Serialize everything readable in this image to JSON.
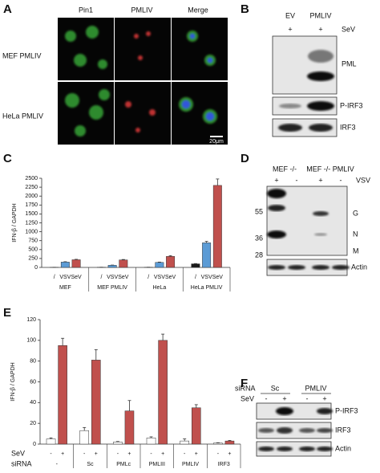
{
  "panels": {
    "A": {
      "label": "A",
      "columns": [
        "Pin1",
        "PMLIV",
        "Merge"
      ],
      "rows": [
        "MEF PMLIV",
        "HeLa PMLIV"
      ],
      "scale_bar": "20μm"
    },
    "B": {
      "label": "B",
      "lanes": [
        "EV",
        "PMLIV"
      ],
      "lane_marks": [
        "+",
        "+"
      ],
      "treatment": "SeV",
      "bands": [
        "PML",
        "P-IRF3",
        "IRF3"
      ]
    },
    "C": {
      "label": "C"
    },
    "D": {
      "label": "D",
      "lanes": [
        "MEF -/-",
        "MEF -/- PMLIV"
      ],
      "lane_marks": [
        "+",
        "-",
        "+",
        "-"
      ],
      "treatment": "VSV",
      "markers": [
        55,
        36,
        28
      ],
      "proteins": [
        "G",
        "N",
        "M"
      ],
      "loading": "Actin"
    },
    "E": {
      "label": "E"
    },
    "F": {
      "label": "F",
      "row_labels": [
        "siRNA",
        "SeV"
      ],
      "lanes": [
        "Sc",
        "PMLIV"
      ],
      "lane_marks": [
        "-",
        "+",
        "-",
        "+"
      ],
      "bands": [
        "P-IRF3",
        "IRF3",
        "Actin"
      ]
    }
  },
  "chart_data": [
    {
      "type": "bar",
      "y_label": "IFN-β / GAPDH",
      "categories": [
        "MEF",
        "MEF PMLIV",
        "HeLa",
        "HeLa PMLIV"
      ],
      "series": [
        {
          "name": "/",
          "color": "#1a1a1a",
          "values": [
            3,
            5,
            5,
            100
          ],
          "errors": [
            1,
            1,
            1,
            8
          ]
        },
        {
          "name": "VSV",
          "color": "#5b9bd5",
          "values": [
            150,
            60,
            140,
            690
          ],
          "errors": [
            10,
            6,
            10,
            40
          ]
        },
        {
          "name": "SeV",
          "color": "#c0504d",
          "values": [
            215,
            210,
            310,
            2300
          ],
          "errors": [
            12,
            12,
            20,
            180
          ]
        }
      ],
      "ylim": [
        0,
        2500
      ],
      "yticks": [
        0,
        250,
        500,
        750,
        1000,
        1250,
        1500,
        1750,
        2000,
        2250,
        2500
      ]
    },
    {
      "type": "bar",
      "y_label": "IFN-β / GAPDH",
      "series_label": "SeV",
      "x_label": "siRNA",
      "categories": [
        "-",
        "Sc",
        "PMLc",
        "PMLIII",
        "PMLIV",
        "IRF3"
      ],
      "series": [
        {
          "name": "-",
          "color": "#ffffff",
          "values": [
            5,
            13,
            2,
            6,
            3,
            1
          ],
          "errors": [
            1,
            3,
            0.5,
            1,
            2,
            0.3
          ]
        },
        {
          "name": "+",
          "color": "#c0504d",
          "values": [
            95,
            81,
            32,
            100,
            35,
            3
          ],
          "errors": [
            7,
            10,
            10,
            6,
            3,
            0.5
          ]
        }
      ],
      "ylim": [
        0,
        120
      ],
      "yticks": [
        0,
        20,
        40,
        60,
        80,
        100,
        120
      ]
    }
  ]
}
